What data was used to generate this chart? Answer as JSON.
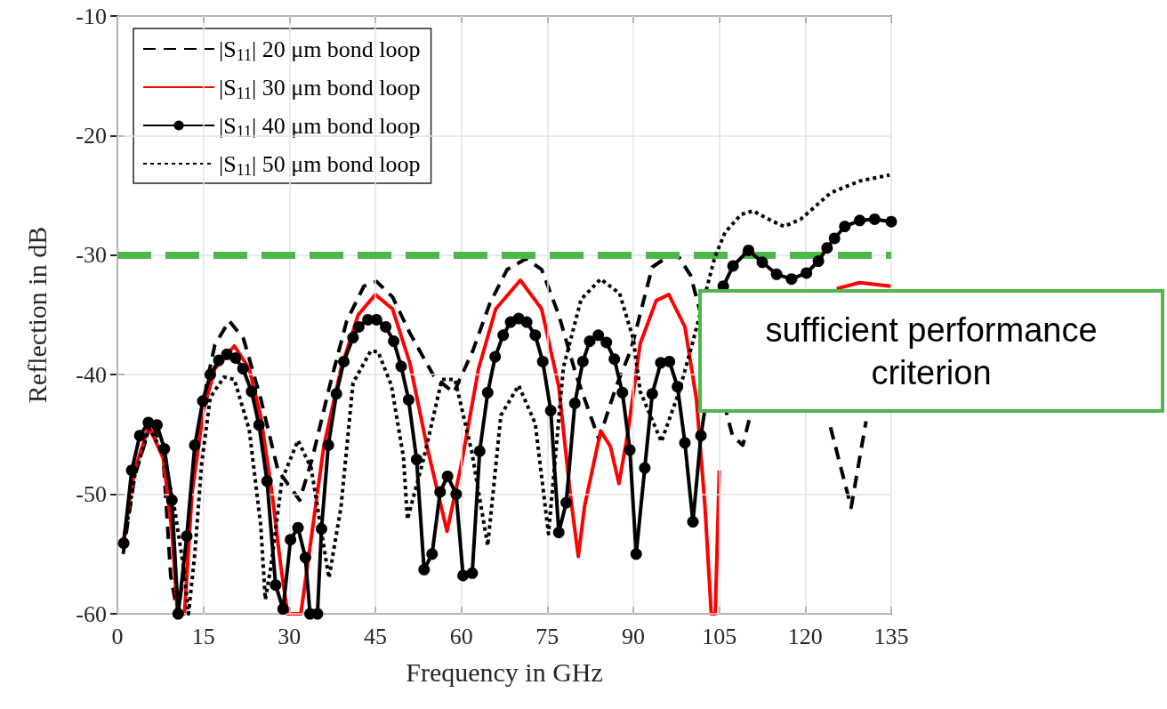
{
  "chart_data": {
    "type": "line",
    "xlabel": "Frequency in GHz",
    "ylabel": "Reflection in dB",
    "xlim": [
      0,
      135
    ],
    "xticks": [
      0,
      15,
      30,
      45,
      60,
      75,
      90,
      105,
      120,
      135
    ],
    "ylim": [
      -60,
      -10
    ],
    "yticks": [
      -60,
      -50,
      -40,
      -30,
      -20,
      -10
    ],
    "grid": true,
    "legend": "top left",
    "ref_lines": [
      {
        "axis": "y",
        "value": -30,
        "label": "sufficient performance criterion",
        "color": "#4db848",
        "line_style": "dashed"
      }
    ],
    "series": [
      {
        "name": "|S$_{11}$| 20 μm bond loop",
        "color": "#000000",
        "line_style": "dashed",
        "marker": "none",
        "x": [
          1,
          3,
          6,
          8,
          9.3,
          10.5,
          11.8,
          13,
          15,
          17,
          19.5,
          22,
          25,
          28,
          31.8,
          34,
          37,
          40,
          43,
          45.2,
          48,
          51,
          55.3,
          58.7,
          62,
          65,
          68,
          71.3,
          74,
          77,
          80,
          84,
          87,
          89.6,
          93.3,
          96.4,
          98,
          100,
          107.3,
          109.1,
          110.4,
          117,
          124.4,
          128,
          130.6
        ],
        "values": [
          -55,
          -48.5,
          -43.8,
          -47,
          -56.8,
          -60,
          -56,
          -49,
          -42,
          -37.5,
          -35.5,
          -37,
          -42,
          -48,
          -50.5,
          -47,
          -41,
          -35.5,
          -32.6,
          -32.2,
          -33.5,
          -36.5,
          -40.2,
          -41.5,
          -38,
          -34,
          -31.2,
          -30.3,
          -31.2,
          -35,
          -40,
          -45.4,
          -41,
          -37.9,
          -31,
          -30,
          -30.2,
          -31.7,
          -45.1,
          -45.9,
          -43.4,
          null,
          -44.4,
          -51.1,
          -43.9
        ]
      },
      {
        "name": "|S$_{11}$| 30 μm bond loop",
        "color": "#ff0000",
        "line_style": "solid",
        "marker": "none",
        "x": [
          1,
          3,
          5.5,
          8,
          9.5,
          10.5,
          11.7,
          13,
          15,
          17,
          20.4,
          23,
          25,
          27,
          28.5,
          29.7,
          32,
          34,
          36,
          39,
          42,
          45,
          48,
          51,
          54,
          57.5,
          60,
          63,
          66,
          70.3,
          74,
          77,
          79,
          80.4,
          81.5,
          84.3,
          86,
          87.5,
          89,
          91.2,
          94,
          96.2,
          99,
          101,
          102.5,
          103.6,
          104.3,
          105,
          105.5,
          115,
          125.5,
          129.5,
          135
        ],
        "values": [
          -54,
          -48,
          -44.3,
          -47,
          -53,
          -60,
          -60,
          -50,
          -43,
          -39.5,
          -37.6,
          -39.5,
          -43.5,
          -50,
          -56,
          -60,
          -60,
          -53,
          -46,
          -39.5,
          -35,
          -33.3,
          -34.5,
          -39,
          -46,
          -53.1,
          -47.5,
          -39.5,
          -34.5,
          -32.1,
          -34.5,
          -41,
          -50,
          -55.2,
          -51,
          -44.7,
          -46,
          -49.1,
          -45,
          -37.4,
          -33.8,
          -33.3,
          -36,
          -42,
          -51,
          -60,
          -60,
          -48,
          null,
          null,
          -32.8,
          -32.3,
          -32.6
        ]
      },
      {
        "name": "|S$_{11}$| 40 μm bond loop",
        "color": "#000000",
        "line_style": "solid",
        "marker": "circle",
        "x": [
          1.1,
          2.5,
          3.9,
          5.4,
          6.9,
          8.2,
          9.5,
          10.6,
          12.1,
          13.5,
          14.9,
          16.2,
          17.7,
          19.1,
          20.6,
          21.9,
          23.4,
          24.7,
          26.1,
          27.6,
          28.9,
          30.2,
          31.5,
          32.8,
          33.6,
          34.9,
          35.6,
          36.8,
          38.2,
          39.5,
          41.1,
          42.1,
          43.7,
          45.2,
          46.8,
          48.2,
          49.5,
          50.8,
          52.2,
          53.5,
          54.9,
          56.3,
          57.6,
          59.1,
          60.3,
          61.9,
          63.2,
          64.6,
          65.9,
          67.3,
          68.6,
          70,
          71.4,
          72.9,
          74.2,
          75.6,
          77,
          78.3,
          79.8,
          81.2,
          82.4,
          83.9,
          85.3,
          86.7,
          88.1,
          89.4,
          90.5,
          92,
          93.3,
          94.8,
          96.3,
          97.7,
          99,
          100.4,
          101.8,
          105.7,
          107.4,
          110.1,
          112.5,
          115,
          117.6,
          120.2,
          122.3,
          123.8,
          125.1,
          126.9,
          129.5,
          132.1,
          135
        ],
        "values": [
          -54.1,
          -48,
          -45.1,
          -44,
          -44.2,
          -46.2,
          -50.5,
          -60,
          -53.5,
          -45.9,
          -42.2,
          -40,
          -38.8,
          -38.3,
          -38.6,
          -39.5,
          -41.4,
          -44.2,
          -48.9,
          -57.6,
          -59.6,
          -53.8,
          -52.8,
          -55.3,
          -60,
          -60,
          -52.9,
          -45.9,
          -41.6,
          -38.9,
          -36.9,
          -36,
          -35.4,
          -35.4,
          -36,
          -37.2,
          -39.3,
          -42.1,
          -47.1,
          -56.3,
          -55,
          -49.8,
          -48.5,
          -50,
          -56.8,
          -56.6,
          -46.4,
          -41.5,
          -38.5,
          -36.7,
          -35.6,
          -35.3,
          -35.6,
          -36.7,
          -38.9,
          -43,
          -53.2,
          -50.7,
          -42.4,
          -38.9,
          -37.2,
          -36.7,
          -37.3,
          -38.7,
          -41.5,
          -46.3,
          -55,
          -47.8,
          -41.6,
          -39,
          -38.9,
          -41,
          -45.7,
          -52.3,
          -45.1,
          -32.6,
          -30.9,
          -29.6,
          -30.6,
          -31.6,
          -32,
          -31.5,
          -30.5,
          -29.4,
          -28.6,
          -27.6,
          -27.1,
          -27,
          -27.2
        ]
      },
      {
        "name": "|S$_{11}$| 50 μm bond loop",
        "color": "#000000",
        "line_style": "dotted",
        "marker": "none",
        "x": [
          1,
          3,
          5.5,
          8,
          10,
          11.5,
          12.4,
          13.5,
          14.7,
          16.2,
          18.6,
          20.4,
          23,
          25,
          25.8,
          26.8,
          28.7,
          31.5,
          33.8,
          36.9,
          39,
          41.1,
          44.2,
          45.5,
          47.8,
          49.9,
          50.6,
          53.5,
          56.6,
          58.9,
          61.8,
          64.6,
          66.9,
          70,
          72.9,
          75.2,
          77.8,
          80.9,
          84.3,
          87.6,
          90,
          91.2,
          94.9,
          98,
          100.3,
          104.2,
          106,
          108.8,
          110.9,
          114,
          116.3,
          119.2,
          124.4,
          129.5,
          134.7
        ],
        "values": [
          -54.5,
          -48.5,
          -44.5,
          -46.5,
          -51.3,
          -56,
          -60,
          -55,
          -47.4,
          -41.9,
          -40.2,
          -40.4,
          -44.6,
          -52.6,
          -58.8,
          -56,
          -48.8,
          -45.5,
          -47.8,
          -57,
          -51.1,
          -40.7,
          -38,
          -38.1,
          -40.9,
          -46.9,
          -52.1,
          -46.9,
          -40.4,
          -40.4,
          -46.4,
          -54.3,
          -43.4,
          -40.9,
          -44.1,
          -53.3,
          -39.4,
          -33.7,
          -32,
          -33.2,
          -37,
          -41.4,
          -45.6,
          -41.4,
          -37.4,
          -30.2,
          -28.1,
          -26.6,
          -26.3,
          -27.1,
          -27.6,
          -27,
          -24.8,
          -23.8,
          -23.3
        ]
      }
    ]
  }
}
